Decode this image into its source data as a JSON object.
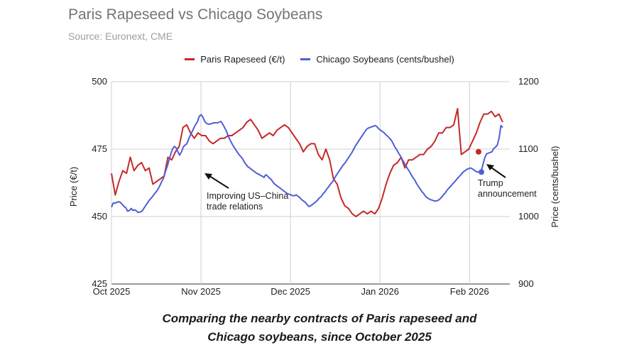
{
  "chart_data": {
    "type": "line",
    "title": "Paris Rapeseed vs Chicago Soybeans",
    "subtitle": "Source: Euronext, CME",
    "caption_line1": "Comparing the nearby contracts of Paris rapeseed and",
    "caption_line2": "Chicago soybeans, since October 2025",
    "x_ticks": [
      "Oct 2025",
      "Nov 2025",
      "Dec 2025",
      "Jan 2026",
      "Feb 2026"
    ],
    "left_axis": {
      "title": "Price (€/t)",
      "ticks": [
        500,
        475,
        450,
        425
      ],
      "ylim": [
        425,
        500
      ]
    },
    "right_axis": {
      "title": "Price (cents/bushel)",
      "ticks": [
        1200,
        1100,
        1000,
        900
      ],
      "ylim": [
        900,
        1200
      ]
    },
    "series": [
      {
        "name": "Paris Rapeseed (€/t)",
        "color": "#c62828",
        "axis": "left",
        "values": [
          466,
          458,
          463,
          467,
          466,
          472,
          467,
          469,
          470,
          467,
          468,
          462,
          463,
          464,
          465,
          472,
          471,
          474,
          476,
          483,
          484,
          481,
          479,
          481,
          480,
          480,
          478,
          477,
          478,
          479,
          479,
          480,
          480,
          481,
          482,
          483,
          485,
          486,
          484,
          482,
          479,
          480,
          481,
          480,
          482,
          483,
          484,
          483,
          481,
          479,
          477,
          474,
          476,
          477,
          477,
          473,
          471,
          475,
          471,
          464,
          462,
          457,
          454,
          453,
          451,
          450,
          451,
          452,
          451,
          452,
          451,
          453,
          457,
          462,
          466,
          469,
          470,
          472,
          468,
          471,
          471,
          472,
          473,
          473,
          475,
          476,
          478,
          481,
          481,
          483,
          483,
          484,
          490,
          473,
          474,
          475,
          478,
          481,
          485,
          488,
          488,
          489,
          487,
          488,
          485
        ]
      },
      {
        "name": "Chicago Soybeans (cents/bushel)",
        "color": "#4f5fd6",
        "axis": "right",
        "values": [
          1014,
          1020,
          1020,
          1021,
          1022,
          1021,
          1018,
          1015,
          1013,
          1008,
          1009,
          1012,
          1009,
          1010,
          1008,
          1006,
          1007,
          1008,
          1012,
          1016,
          1020,
          1024,
          1027,
          1030,
          1034,
          1037,
          1041,
          1046,
          1052,
          1057,
          1066,
          1074,
          1083,
          1092,
          1100,
          1104,
          1102,
          1096,
          1091,
          1096,
          1103,
          1106,
          1108,
          1115,
          1121,
          1126,
          1132,
          1137,
          1141,
          1149,
          1151,
          1147,
          1141,
          1138,
          1137,
          1137,
          1138,
          1139,
          1139,
          1139,
          1140,
          1141,
          1137,
          1132,
          1127,
          1120,
          1114,
          1109,
          1104,
          1100,
          1096,
          1092,
          1089,
          1086,
          1081,
          1077,
          1074,
          1072,
          1070,
          1068,
          1066,
          1064,
          1063,
          1061,
          1060,
          1058,
          1062,
          1060,
          1057,
          1055,
          1051,
          1048,
          1046,
          1044,
          1042,
          1040,
          1038,
          1036,
          1034,
          1033,
          1032,
          1031,
          1031,
          1032,
          1030,
          1028,
          1025,
          1023,
          1021,
          1018,
          1015,
          1016,
          1018,
          1020,
          1022,
          1025,
          1028,
          1030,
          1034,
          1037,
          1041,
          1044,
          1048,
          1051,
          1055,
          1060,
          1064,
          1068,
          1072,
          1076,
          1079,
          1083,
          1087,
          1091,
          1095,
          1100,
          1105,
          1109,
          1113,
          1117,
          1121,
          1125,
          1129,
          1131,
          1132,
          1133,
          1134,
          1135,
          1133,
          1130,
          1128,
          1126,
          1124,
          1121,
          1119,
          1116,
          1113,
          1108,
          1103,
          1099,
          1094,
          1090,
          1085,
          1080,
          1076,
          1071,
          1067,
          1062,
          1058,
          1054,
          1049,
          1045,
          1041,
          1037,
          1034,
          1030,
          1028,
          1026,
          1025,
          1024,
          1023,
          1023,
          1024,
          1026,
          1029,
          1032,
          1035,
          1039,
          1042,
          1045,
          1048,
          1051,
          1054,
          1057,
          1060,
          1063,
          1066,
          1068,
          1070,
          1071,
          1072,
          1071,
          1069,
          1067,
          1066,
          1066,
          1067,
          1077,
          1087,
          1093,
          1094,
          1095,
          1096,
          1101,
          1103,
          1106,
          1116,
          1135,
          1132
        ]
      }
    ],
    "annotations": [
      {
        "text_line1": "Improving US–China",
        "text_line2": "trade relations"
      },
      {
        "text_line1": "Trump",
        "text_line2": "announcement"
      }
    ],
    "event_markers": [
      {
        "series": "Paris Rapeseed (€/t)",
        "value": 474
      },
      {
        "series": "Chicago Soybeans (cents/bushel)",
        "value": 1066
      }
    ]
  }
}
